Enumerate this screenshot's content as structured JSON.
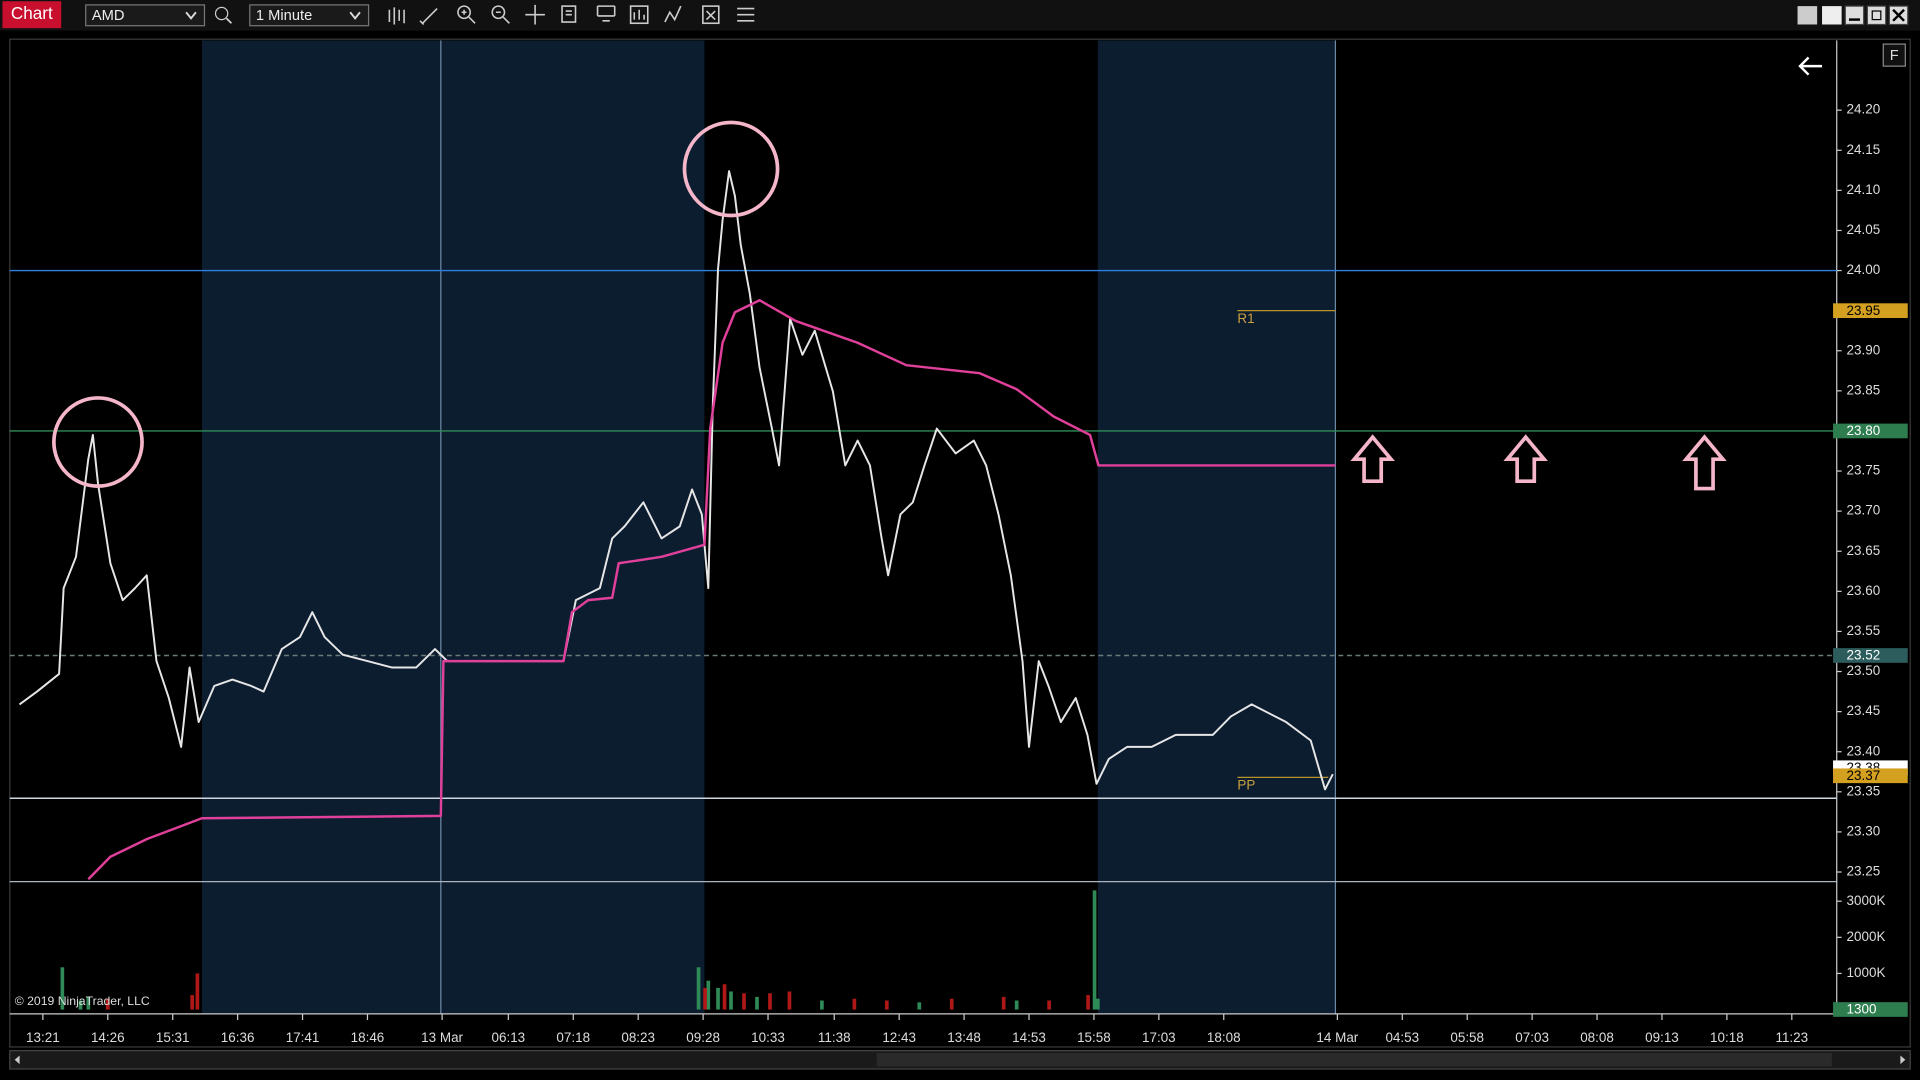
{
  "toolbar": {
    "title": "Chart",
    "instrument": "AMD",
    "interval": "1 Minute"
  },
  "copyright": "© 2019 NinjaTrader, LLC",
  "chart_data": [
    {
      "type": "line",
      "xlim": [
        -0.5,
        27.6
      ],
      "xticks": [
        {
          "value": 0,
          "label": "13:21"
        },
        {
          "value": 1,
          "label": "14:26"
        },
        {
          "value": 2,
          "label": "15:31"
        },
        {
          "value": 3,
          "label": "16:36"
        },
        {
          "value": 4,
          "label": "17:41"
        },
        {
          "value": 5,
          "label": "18:46"
        },
        {
          "value": 6.15,
          "label": "13 Mar"
        },
        {
          "value": 7.17,
          "label": "06:13"
        },
        {
          "value": 8.17,
          "label": "07:18"
        },
        {
          "value": 9.17,
          "label": "08:23"
        },
        {
          "value": 10.17,
          "label": "09:28"
        },
        {
          "value": 11.17,
          "label": "10:33"
        },
        {
          "value": 12.19,
          "label": "11:38"
        },
        {
          "value": 13.19,
          "label": "12:43"
        },
        {
          "value": 14.19,
          "label": "13:48"
        },
        {
          "value": 15.19,
          "label": "14:53"
        },
        {
          "value": 16.19,
          "label": "15:58"
        },
        {
          "value": 17.19,
          "label": "17:03"
        },
        {
          "value": 18.19,
          "label": "18:08"
        },
        {
          "value": 19.94,
          "label": "14 Mar"
        },
        {
          "value": 20.94,
          "label": "04:53"
        },
        {
          "value": 21.94,
          "label": "05:58"
        },
        {
          "value": 22.94,
          "label": "07:03"
        },
        {
          "value": 23.94,
          "label": "08:08"
        },
        {
          "value": 24.94,
          "label": "09:13"
        },
        {
          "value": 25.94,
          "label": "10:18"
        },
        {
          "value": 26.94,
          "label": "11:23"
        }
      ],
      "ylim": [
        23.238,
        24.287
      ],
      "yticks": [
        23.25,
        {
          "value": 23.3,
          "label": "23.30"
        },
        23.35,
        {
          "value": 23.4,
          "label": "23.40"
        },
        23.45,
        {
          "value": 23.5,
          "label": "23.50"
        },
        23.55,
        {
          "value": 23.6,
          "label": "23.60"
        },
        23.65,
        {
          "value": 23.7,
          "label": "23.70"
        },
        23.75,
        {
          "value": 23.8,
          "label": "23.80"
        },
        23.85,
        {
          "value": 23.9,
          "label": "23.90"
        },
        23.95,
        {
          "value": 24.0,
          "label": "24.00"
        },
        24.05,
        {
          "value": 24.1,
          "label": "24.10"
        },
        24.15,
        {
          "value": 24.2,
          "label": "24.20"
        }
      ],
      "shaded_ranges": [
        [
          2.45,
          10.19
        ],
        [
          16.25,
          19.91
        ]
      ],
      "session_lines": [
        6.13,
        19.91
      ],
      "hlines": [
        {
          "value": 24.0,
          "color": "#2f7fe0"
        },
        {
          "value": 23.8,
          "color": "#2e8b57"
        },
        {
          "value": 23.52,
          "color": "#6a7a7a",
          "dashed": true
        },
        {
          "value": 23.342,
          "color": "#cfd8e0"
        }
      ],
      "pivots": [
        {
          "label": "R1",
          "value": 23.95,
          "x": [
            18.4,
            19.91
          ]
        },
        {
          "label": "PP",
          "value": 23.368,
          "x": [
            18.4,
            19.8
          ]
        }
      ],
      "price_labels": [
        {
          "value": 23.95,
          "color": "#d4a020",
          "text_color": "#000"
        },
        {
          "value": {
            "value": 23.8,
            "label": "23.80"
          },
          "color": "#2e7d4f",
          "text_color": "#fff"
        },
        {
          "value": 23.52,
          "color": "#2d5c5c",
          "text_color": "#fff"
        },
        {
          "value": 23.38,
          "color": "#ffffff",
          "text_color": "#000"
        },
        {
          "value": 23.37,
          "color": "#d4a020",
          "text_color": "#000"
        }
      ],
      "series": [
        {
          "color": "#e6e6e6",
          "x": [
            -0.36,
            -0.09,
            0.25,
            0.32,
            0.51,
            0.7,
            0.77,
            0.85,
            1.04,
            1.23,
            1.42,
            1.6,
            1.75,
            1.94,
            2.13,
            2.26,
            2.4,
            2.64,
            2.92,
            3.21,
            3.4,
            3.68,
            3.96,
            4.15,
            4.34,
            4.62,
            5.0,
            5.38,
            5.75,
            6.04,
            6.23,
            6.89,
            7.64,
            8.02,
            8.21,
            8.58,
            8.77,
            8.96,
            9.25,
            9.53,
            9.81,
            10.0,
            10.15,
            10.25,
            10.32,
            10.4,
            10.47,
            10.57,
            10.66,
            10.75,
            10.89,
            11.04,
            11.23,
            11.34,
            11.51,
            11.7,
            11.89,
            12.17,
            12.36,
            12.55,
            12.74,
            12.92,
            13.02,
            13.21,
            13.4,
            13.58,
            13.77,
            14.06,
            14.34,
            14.53,
            14.72,
            14.91,
            15.09,
            15.19,
            15.34,
            15.49,
            15.68,
            15.91,
            16.09,
            16.23,
            16.42,
            16.7,
            17.08,
            17.45,
            18.02,
            18.3,
            18.62,
            19.15,
            19.53,
            19.75,
            19.87
          ],
          "values": [
            23.459,
            23.475,
            23.497,
            23.604,
            23.643,
            23.765,
            23.795,
            23.734,
            23.635,
            23.589,
            23.604,
            23.62,
            23.513,
            23.467,
            23.406,
            23.505,
            23.437,
            23.482,
            23.49,
            23.482,
            23.475,
            23.528,
            23.543,
            23.574,
            23.543,
            23.521,
            23.513,
            23.505,
            23.505,
            23.528,
            23.513,
            23.513,
            23.513,
            23.513,
            23.589,
            23.604,
            23.666,
            23.681,
            23.711,
            23.666,
            23.681,
            23.727,
            23.696,
            23.604,
            23.834,
            24.002,
            24.063,
            24.124,
            24.093,
            24.032,
            23.971,
            23.879,
            23.803,
            23.757,
            23.94,
            23.895,
            23.925,
            23.849,
            23.757,
            23.788,
            23.757,
            23.666,
            23.62,
            23.696,
            23.711,
            23.757,
            23.803,
            23.772,
            23.788,
            23.757,
            23.696,
            23.62,
            23.513,
            23.406,
            23.513,
            23.482,
            23.437,
            23.467,
            23.421,
            23.36,
            23.391,
            23.406,
            23.406,
            23.421,
            23.421,
            23.444,
            23.459,
            23.437,
            23.414,
            23.353,
            23.372
          ]
        },
        {
          "color": "#e0409a",
          "x": [
            0.7,
            1.04,
            1.6,
            2.45,
            6.13,
            6.17,
            8.02,
            8.15,
            8.4,
            8.77,
            8.87,
            9.53,
            10.19,
            10.28,
            10.47,
            10.66,
            11.04,
            11.6,
            12.55,
            13.3,
            14.43,
            15.0,
            15.57,
            16.13,
            16.26,
            19.91
          ],
          "values": [
            23.241,
            23.269,
            23.291,
            23.317,
            23.32,
            23.513,
            23.513,
            23.574,
            23.589,
            23.592,
            23.635,
            23.643,
            23.658,
            23.803,
            23.91,
            23.948,
            23.963,
            23.937,
            23.91,
            23.882,
            23.872,
            23.852,
            23.818,
            23.795,
            23.757,
            23.757
          ]
        }
      ]
    },
    {
      "type": "bar",
      "xlim": [
        -0.5,
        27.6
      ],
      "ylim": [
        -120000,
        3542000
      ],
      "yticks": [
        {
          "value": 1000000,
          "label": "1000K"
        },
        {
          "value": 2000000,
          "label": "2000K"
        },
        {
          "value": 3000000,
          "label": "3000K"
        }
      ],
      "last_value": 1300,
      "series": [
        {
          "color": "#2e8b57",
          "x": [
            0.3,
            0.58,
            0.7,
            10.1,
            10.25,
            10.4,
            10.6,
            11.0,
            12.0,
            13.5,
            15.0,
            16.2,
            16.25
          ],
          "values": [
            1170000,
            250000,
            350000,
            1170000,
            800000,
            600000,
            500000,
            350000,
            250000,
            200000,
            250000,
            3300000,
            300000
          ]
        },
        {
          "color": "#b01818",
          "x": [
            1.0,
            2.3,
            2.38,
            10.2,
            10.5,
            10.8,
            11.2,
            11.5,
            12.5,
            13.0,
            14.0,
            14.8,
            15.5,
            16.1
          ],
          "values": [
            300000,
            400000,
            1000000,
            600000,
            700000,
            450000,
            450000,
            500000,
            300000,
            250000,
            300000,
            350000,
            250000,
            400000
          ]
        }
      ]
    }
  ]
}
